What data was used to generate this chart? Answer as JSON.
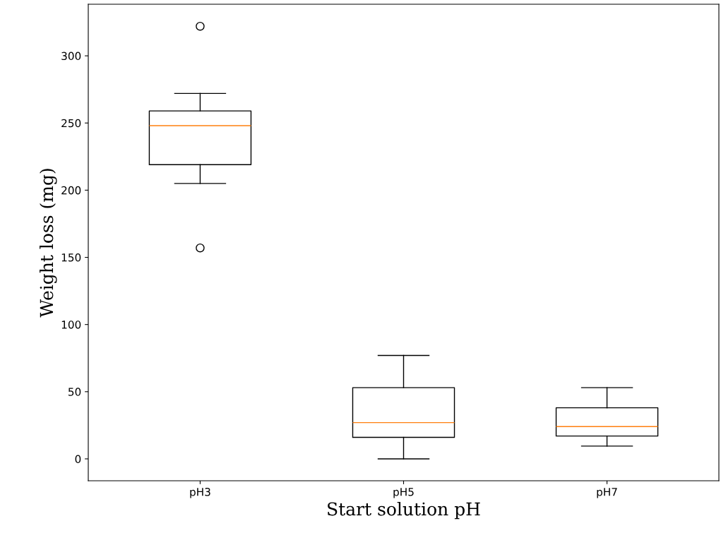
{
  "chart_data": {
    "type": "box",
    "xlabel": "Start solution pH",
    "ylabel": "Weight loss (mg)",
    "categories": [
      "pH3",
      "pH5",
      "pH7"
    ],
    "boxes": [
      {
        "low": 205,
        "q1": 219,
        "median": 248,
        "q3": 259,
        "high": 272,
        "outliers": [
          322,
          157
        ]
      },
      {
        "low": 0,
        "q1": 16,
        "median": 27,
        "q3": 53,
        "high": 77
      },
      {
        "low": 9.5,
        "q1": 17,
        "median": 24,
        "q3": 38,
        "high": 53
      }
    ],
    "color": "#000000",
    "ylim": [
      -16.3,
      338.4
    ],
    "yticks": [
      0,
      50,
      100,
      150,
      200,
      250,
      300
    ],
    "grid": false
  }
}
